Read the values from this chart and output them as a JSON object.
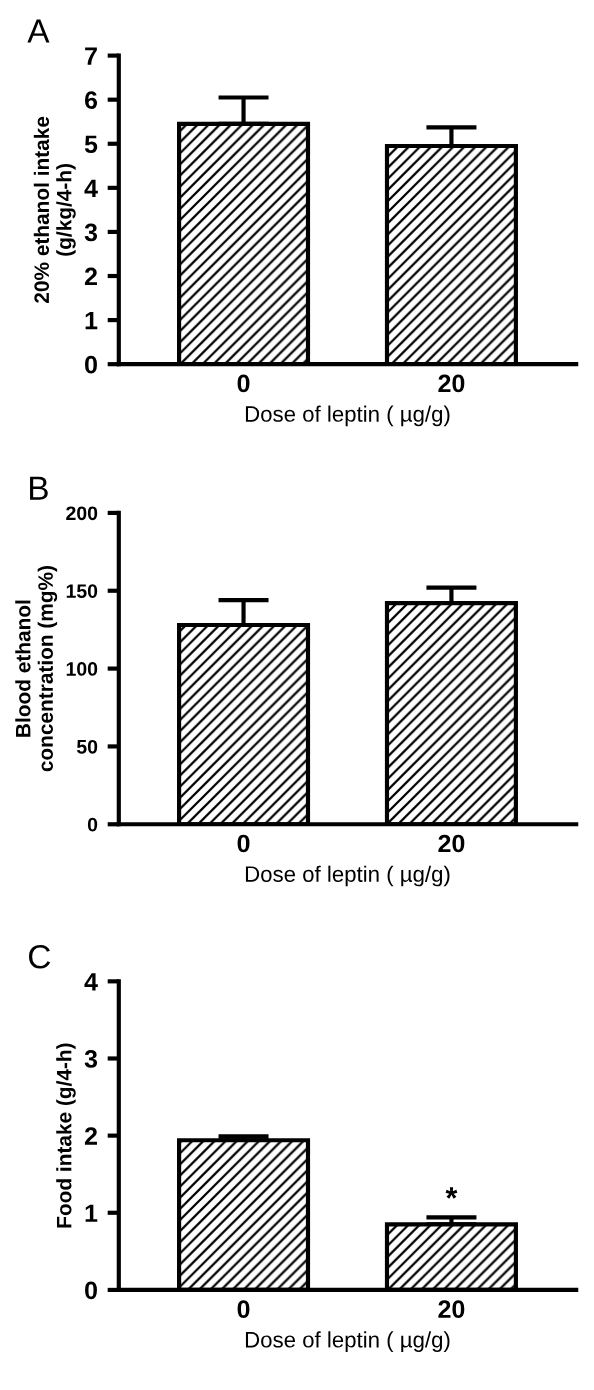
{
  "chart_data": [
    {
      "type": "bar",
      "title": "A",
      "xlabel": "Dose of leptin ( µg/g)",
      "ylabel": "20% ethanol intake\n(g/kg/4-h)",
      "categories": [
        "0",
        "20"
      ],
      "values": [
        5.45,
        4.95
      ],
      "errors": [
        0.6,
        0.42
      ],
      "color": "#000000",
      "ylim": [
        0,
        7
      ],
      "yticks": [
        0,
        1,
        2,
        3,
        4,
        5,
        6,
        7
      ],
      "grid": false,
      "legend": false
    },
    {
      "type": "bar",
      "title": "B",
      "xlabel": "Dose of leptin ( µg/g)",
      "ylabel": "Blood ethanol\nconcentration (mg%)",
      "categories": [
        "0",
        "20"
      ],
      "values": [
        128,
        142
      ],
      "errors": [
        16,
        10
      ],
      "color": "#000000",
      "ylim": [
        0,
        200
      ],
      "yticks": [
        0,
        50,
        100,
        150,
        200
      ],
      "grid": false,
      "legend": false
    },
    {
      "type": "bar",
      "title": "C",
      "xlabel": "Dose of leptin ( µg/g)",
      "ylabel": "Food intake (g/4-h)",
      "categories": [
        "0",
        "20"
      ],
      "values": [
        1.94,
        0.85
      ],
      "errors": [
        0.05,
        0.09
      ],
      "color": "#000000",
      "ylim": [
        0,
        4
      ],
      "yticks": [
        0,
        1,
        2,
        3,
        4
      ],
      "grid": false,
      "legend": false,
      "annotations": [
        {
          "text": "*",
          "x": "20",
          "y": 0.94
        }
      ]
    }
  ]
}
